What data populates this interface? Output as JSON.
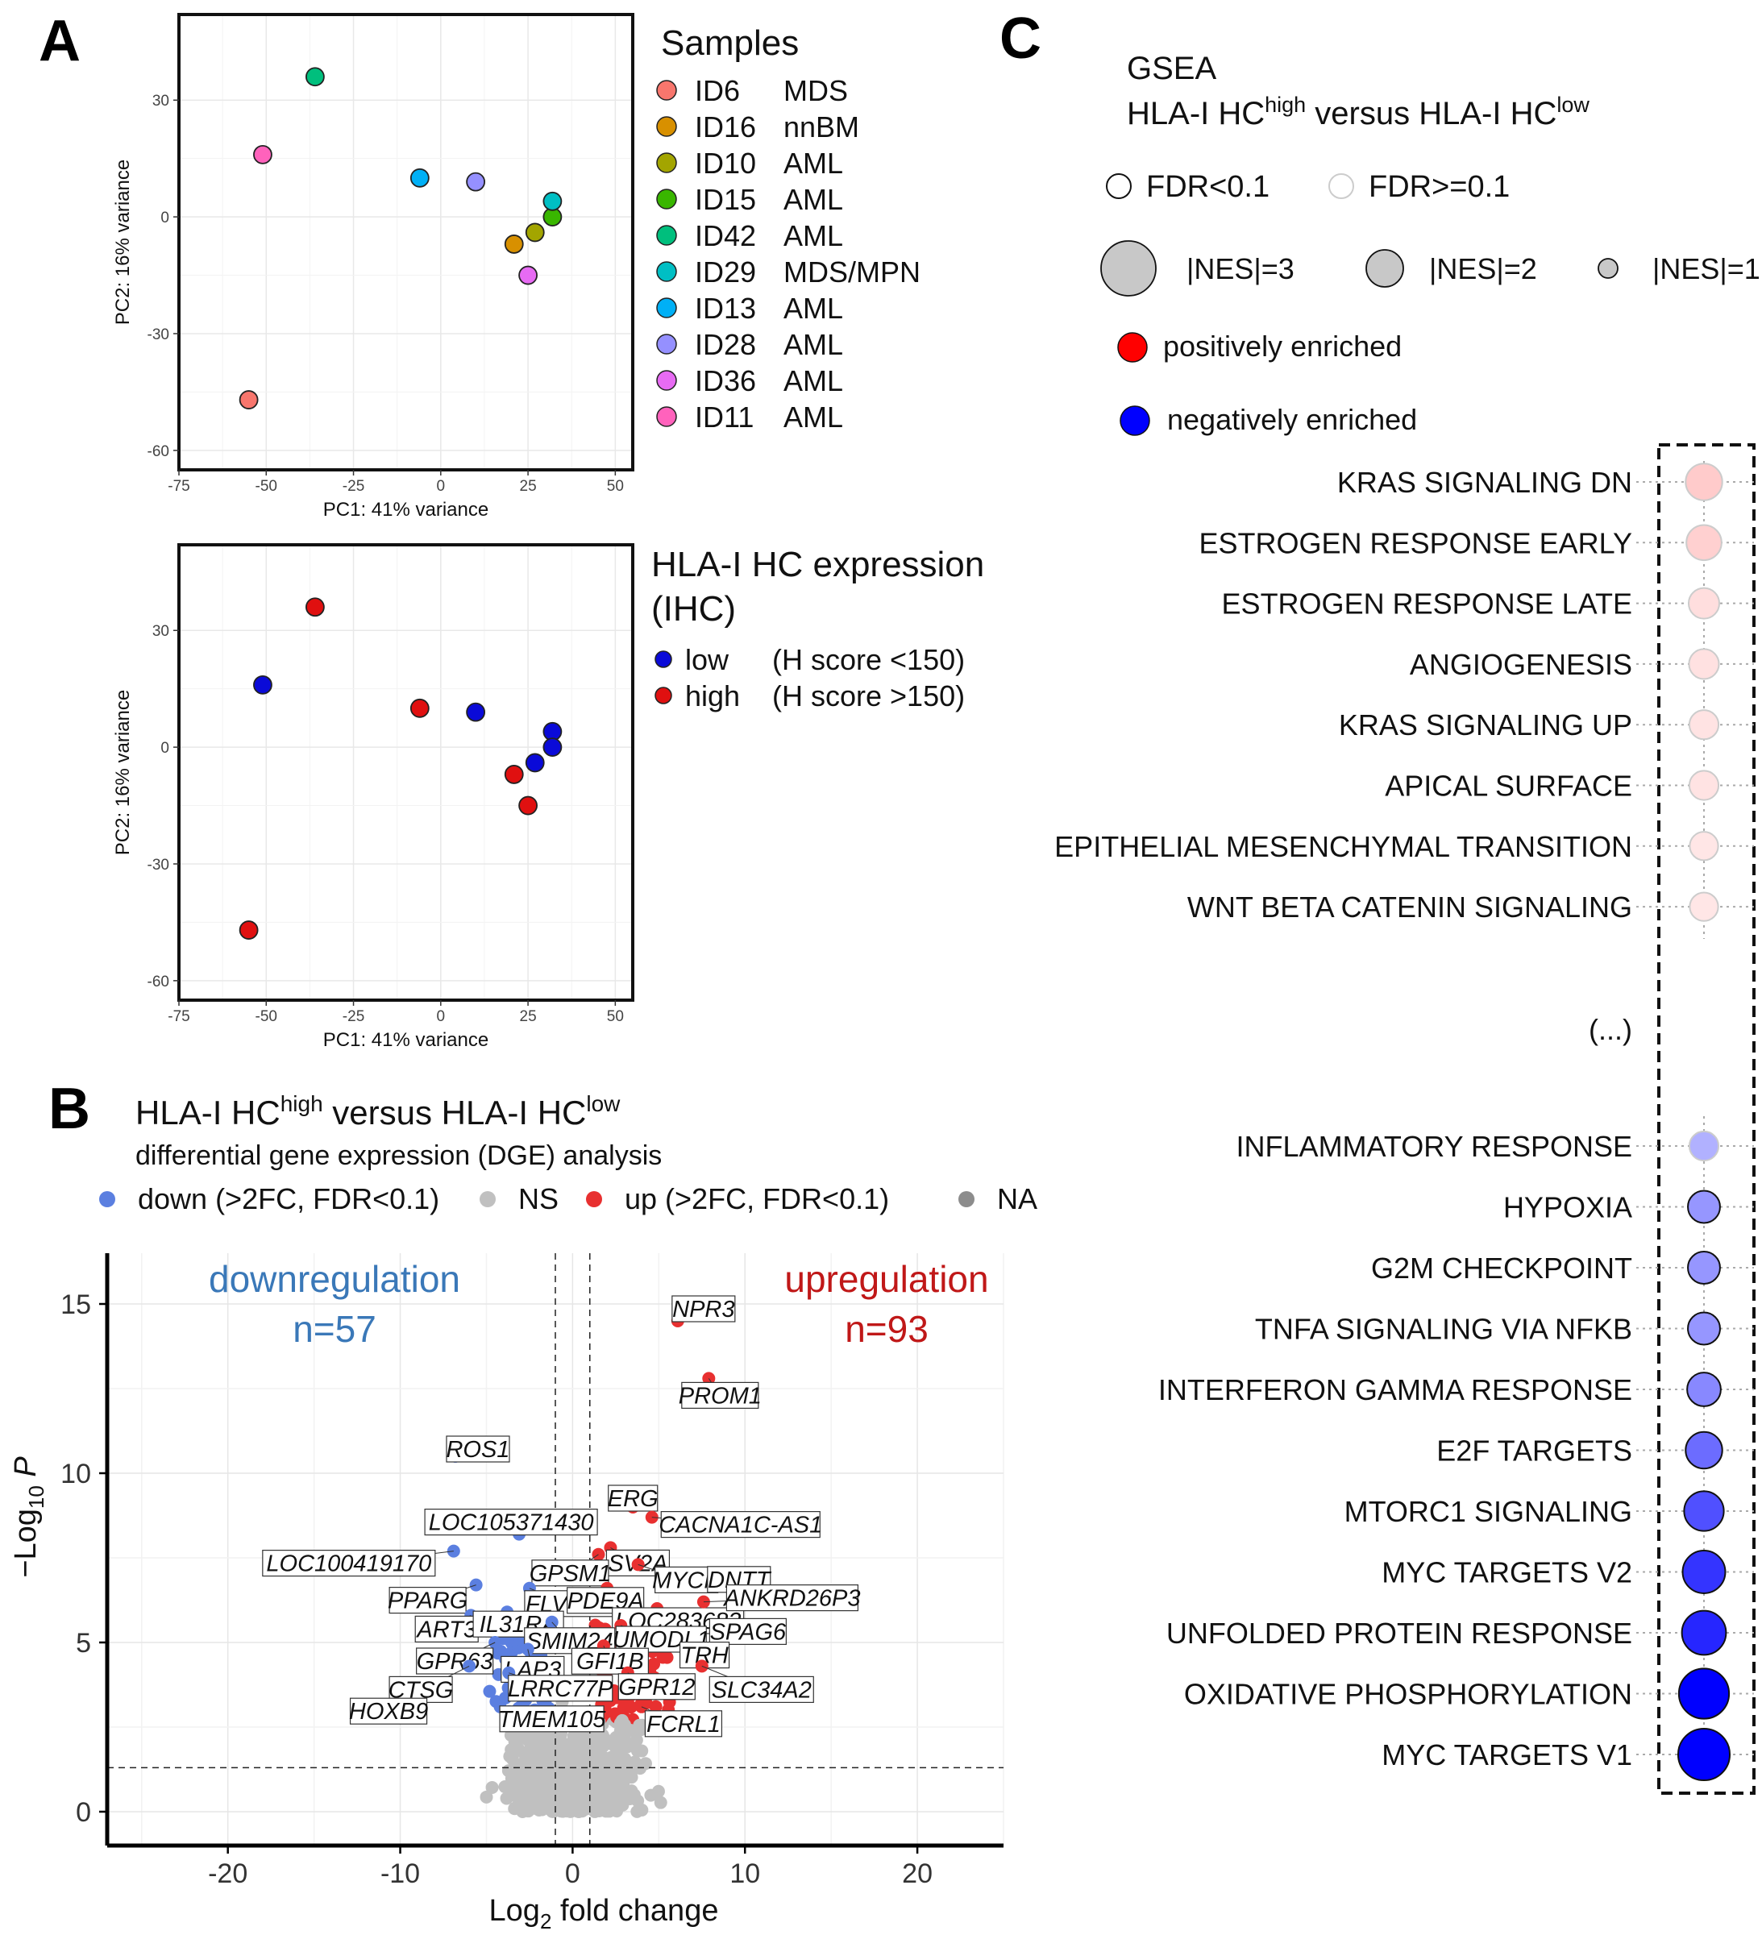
{
  "panel_labels": {
    "a": "A",
    "b": "B",
    "c": "C"
  },
  "panel_a": {
    "x_label": "PC1: 41% variance",
    "y_label": "PC2: 16% variance",
    "samples_legend_title": "Samples",
    "expr_legend_title_line1": "HLA-I HC expression",
    "expr_legend_title_line2": "(IHC)",
    "expr_legend": [
      {
        "label": "low",
        "note": "(H score <150)",
        "color": "#0a0ad8"
      },
      {
        "label": "high",
        "note": "(H score >150)",
        "color": "#e01010"
      }
    ]
  },
  "panel_b": {
    "title_main": "HLA-I HC",
    "title_sup1": "high",
    "title_mid": " versus HLA-I HC",
    "title_sup2": "low",
    "subtitle": "differential gene expression (DGE) analysis",
    "legend": [
      {
        "label": "down (>2FC, FDR<0.1)",
        "color": "#5b7fe0"
      },
      {
        "label": "NS",
        "color": "#c0c0c0"
      },
      {
        "label": "up (>2FC, FDR<0.1)",
        "color": "#e83030"
      },
      {
        "label": "NA",
        "color": "#8c8c8c"
      }
    ],
    "down_label": "downregulation",
    "down_count": "n=57",
    "up_label": "upregulation",
    "up_count": "n=93",
    "x_label_main": "Log",
    "x_label_sub": "2",
    "x_label_rest": " fold change",
    "y_label_main": "−Log",
    "y_label_sub": "10",
    "y_label_rest": " P",
    "colors": {
      "down": "#5b7fe0",
      "up": "#e83030",
      "ns": "#c0c0c0",
      "down_text": "#3a78b8",
      "up_text": "#c01818"
    }
  },
  "panel_c": {
    "title_line1": "GSEA",
    "title_main": "HLA-I HC",
    "title_sup1": "high",
    "title_mid": " versus HLA-I HC",
    "title_sup2": "low",
    "fdr_legend": [
      "FDR<0.1",
      "FDR>=0.1"
    ],
    "nes_legend": [
      "|NES|=3",
      "|NES|=2",
      "|NES|=1"
    ],
    "pos_label": "positively enriched",
    "neg_label": "negatively enriched",
    "ellipsis": "(...)"
  },
  "chart_data": [
    {
      "type": "scatter",
      "panel": "A-top",
      "title": "Samples",
      "xlabel": "PC1: 41% variance",
      "ylabel": "PC2: 16% variance",
      "xlim": [
        -75,
        55
      ],
      "ylim": [
        -65,
        52
      ],
      "xticks": [
        -75,
        -50,
        -25,
        0,
        25,
        50
      ],
      "yticks": [
        -60,
        -30,
        0,
        30
      ],
      "points": [
        {
          "id": "ID6",
          "group": "MDS",
          "x": -55,
          "y": -47,
          "color": "#f8766d"
        },
        {
          "id": "ID16",
          "group": "nnBM",
          "x": 21,
          "y": -7,
          "color": "#d89000"
        },
        {
          "id": "ID10",
          "group": "AML",
          "x": 27,
          "y": -4,
          "color": "#a3a500"
        },
        {
          "id": "ID15",
          "group": "AML",
          "x": 32,
          "y": 0,
          "color": "#39b600"
        },
        {
          "id": "ID42",
          "group": "AML",
          "x": -36,
          "y": 36,
          "color": "#00bf7d"
        },
        {
          "id": "ID29",
          "group": "MDS/MPN",
          "x": 32,
          "y": 4,
          "color": "#00bfc4"
        },
        {
          "id": "ID13",
          "group": "AML",
          "x": -6,
          "y": 10,
          "color": "#00b0f6"
        },
        {
          "id": "ID28",
          "group": "AML",
          "x": 10,
          "y": 9,
          "color": "#9590ff"
        },
        {
          "id": "ID36",
          "group": "AML",
          "x": 25,
          "y": -15,
          "color": "#e76bf3"
        },
        {
          "id": "ID11",
          "group": "AML",
          "x": -51,
          "y": 16,
          "color": "#ff62bc"
        }
      ]
    },
    {
      "type": "scatter",
      "panel": "A-bottom",
      "title": "HLA-I HC expression (IHC)",
      "xlabel": "PC1: 41% variance",
      "ylabel": "PC2: 16% variance",
      "xlim": [
        -75,
        55
      ],
      "ylim": [
        -65,
        52
      ],
      "xticks": [
        -75,
        -50,
        -25,
        0,
        25,
        50
      ],
      "yticks": [
        -60,
        -30,
        0,
        30
      ],
      "points": [
        {
          "x": -36,
          "y": 36,
          "level": "high"
        },
        {
          "x": -51,
          "y": 16,
          "level": "low"
        },
        {
          "x": -6,
          "y": 10,
          "level": "high"
        },
        {
          "x": 10,
          "y": 9,
          "level": "low"
        },
        {
          "x": 32,
          "y": 4,
          "level": "low"
        },
        {
          "x": 32,
          "y": 0,
          "level": "low"
        },
        {
          "x": 27,
          "y": -4,
          "level": "low"
        },
        {
          "x": 21,
          "y": -7,
          "level": "high"
        },
        {
          "x": 25,
          "y": -15,
          "level": "high"
        },
        {
          "x": -55,
          "y": -47,
          "level": "high"
        }
      ]
    },
    {
      "type": "scatter",
      "panel": "B",
      "title": "HLA-I HChigh versus HLA-I HClow differential gene expression (DGE) analysis",
      "xlabel": "Log2 fold change",
      "ylabel": "-Log10 P",
      "xlim": [
        -27,
        25
      ],
      "ylim": [
        -1,
        16.5
      ],
      "xticks": [
        -20,
        -10,
        0,
        10,
        20
      ],
      "yticks": [
        0,
        5,
        10,
        15
      ],
      "thresholds": {
        "fc": [
          -1,
          1
        ],
        "p": 1.3
      },
      "genes": [
        {
          "gene": "NPR3",
          "x": 6.1,
          "y": 14.5,
          "dir": "up"
        },
        {
          "gene": "PROM1",
          "x": 7.9,
          "y": 12.8,
          "dir": "up"
        },
        {
          "gene": "ROS1",
          "x": -6.8,
          "y": 10.5,
          "dir": "down"
        },
        {
          "gene": "ERG",
          "x": 3.5,
          "y": 9.0,
          "dir": "up"
        },
        {
          "gene": "CACNA1C-AS1",
          "x": 4.6,
          "y": 8.7,
          "dir": "up"
        },
        {
          "gene": "LOC105371430",
          "x": -3.1,
          "y": 8.2,
          "dir": "down"
        },
        {
          "gene": "SV2A",
          "x": 2.2,
          "y": 7.8,
          "dir": "up"
        },
        {
          "gene": "LOC100419170",
          "x": -6.9,
          "y": 7.7,
          "dir": "down"
        },
        {
          "gene": "GPSM1",
          "x": 1.5,
          "y": 7.6,
          "dir": "up"
        },
        {
          "gene": "MYCN",
          "x": 3.8,
          "y": 7.3,
          "dir": "up"
        },
        {
          "gene": "DNTT",
          "x": 10.4,
          "y": 6.6,
          "dir": "up"
        },
        {
          "gene": "PPARG",
          "x": -5.6,
          "y": 6.7,
          "dir": "down"
        },
        {
          "gene": "FLVCR2",
          "x": -2.5,
          "y": 6.6,
          "dir": "down"
        },
        {
          "gene": "PDE9A",
          "x": 2.0,
          "y": 6.6,
          "dir": "up"
        },
        {
          "gene": "LOC283683",
          "x": 4.9,
          "y": 6.0,
          "dir": "up"
        },
        {
          "gene": "ANKRD26P3",
          "x": 7.6,
          "y": 6.2,
          "dir": "up"
        },
        {
          "gene": "ART3",
          "x": -5.9,
          "y": 5.8,
          "dir": "down"
        },
        {
          "gene": "IL31RA",
          "x": -3.8,
          "y": 5.9,
          "dir": "down"
        },
        {
          "gene": "SMIM24",
          "x": -1.2,
          "y": 5.6,
          "dir": "down"
        },
        {
          "gene": "UMODL1",
          "x": 2.8,
          "y": 5.5,
          "dir": "up"
        },
        {
          "gene": "SPAG6",
          "x": 8.3,
          "y": 5.3,
          "dir": "up"
        },
        {
          "gene": "GPR63",
          "x": -4.5,
          "y": 5.0,
          "dir": "down"
        },
        {
          "gene": "LAP3",
          "x": -2.6,
          "y": 4.8,
          "dir": "down"
        },
        {
          "gene": "GFI1B",
          "x": 1.8,
          "y": 4.9,
          "dir": "up"
        },
        {
          "gene": "TRH",
          "x": 7.0,
          "y": 4.7,
          "dir": "up"
        },
        {
          "gene": "CTSG",
          "x": -6.0,
          "y": 4.3,
          "dir": "down"
        },
        {
          "gene": "LRRC77P",
          "x": -3.7,
          "y": 4.1,
          "dir": "down"
        },
        {
          "gene": "GPR12",
          "x": 3.2,
          "y": 4.1,
          "dir": "up"
        },
        {
          "gene": "SLC34A2",
          "x": 7.5,
          "y": 4.3,
          "dir": "up"
        },
        {
          "gene": "HOXB9",
          "x": -8.9,
          "y": 2.9,
          "dir": "down"
        },
        {
          "gene": "TMEM105",
          "x": -4.2,
          "y": 3.1,
          "dir": "down"
        },
        {
          "gene": "FCRL1",
          "x": 4.0,
          "y": 3.1,
          "dir": "up"
        }
      ]
    },
    {
      "type": "dot",
      "panel": "C",
      "title": "GSEA HLA-I HChigh versus HLA-I HClow",
      "pathways": [
        {
          "name": "KRAS SIGNALING DN",
          "nes": 1.8,
          "fdr_lt_0_1": false
        },
        {
          "name": "ESTROGEN RESPONSE EARLY",
          "nes": 1.7,
          "fdr_lt_0_1": false
        },
        {
          "name": "ESTROGEN RESPONSE LATE",
          "nes": 1.4,
          "fdr_lt_0_1": false
        },
        {
          "name": "ANGIOGENESIS",
          "nes": 1.35,
          "fdr_lt_0_1": false
        },
        {
          "name": "KRAS SIGNALING UP",
          "nes": 1.3,
          "fdr_lt_0_1": false
        },
        {
          "name": "APICAL SURFACE",
          "nes": 1.3,
          "fdr_lt_0_1": false
        },
        {
          "name": "EPITHELIAL MESENCHYMAL TRANSITION",
          "nes": 1.25,
          "fdr_lt_0_1": false
        },
        {
          "name": "WNT BETA CATENIN SIGNALING",
          "nes": 1.25,
          "fdr_lt_0_1": false
        },
        {
          "name": "INFLAMMATORY RESPONSE",
          "nes": -1.3,
          "fdr_lt_0_1": false
        },
        {
          "name": "HYPOXIA",
          "nes": -1.5,
          "fdr_lt_0_1": true
        },
        {
          "name": "G2M CHECKPOINT",
          "nes": -1.5,
          "fdr_lt_0_1": true
        },
        {
          "name": "TNFA SIGNALING VIA NFKB",
          "nes": -1.5,
          "fdr_lt_0_1": true
        },
        {
          "name": "INTERFERON GAMMA RESPONSE",
          "nes": -1.6,
          "fdr_lt_0_1": true
        },
        {
          "name": "E2F TARGETS",
          "nes": -1.8,
          "fdr_lt_0_1": true
        },
        {
          "name": "MTORC1 SIGNALING",
          "nes": -2.0,
          "fdr_lt_0_1": true
        },
        {
          "name": "MYC TARGETS V2",
          "nes": -2.2,
          "fdr_lt_0_1": true
        },
        {
          "name": "UNFOLDED PROTEIN RESPONSE",
          "nes": -2.3,
          "fdr_lt_0_1": true
        },
        {
          "name": "OXIDATIVE PHOSPHORYLATION",
          "nes": -2.7,
          "fdr_lt_0_1": true
        },
        {
          "name": "MYC TARGETS V1",
          "nes": -2.8,
          "fdr_lt_0_1": true
        }
      ]
    }
  ]
}
